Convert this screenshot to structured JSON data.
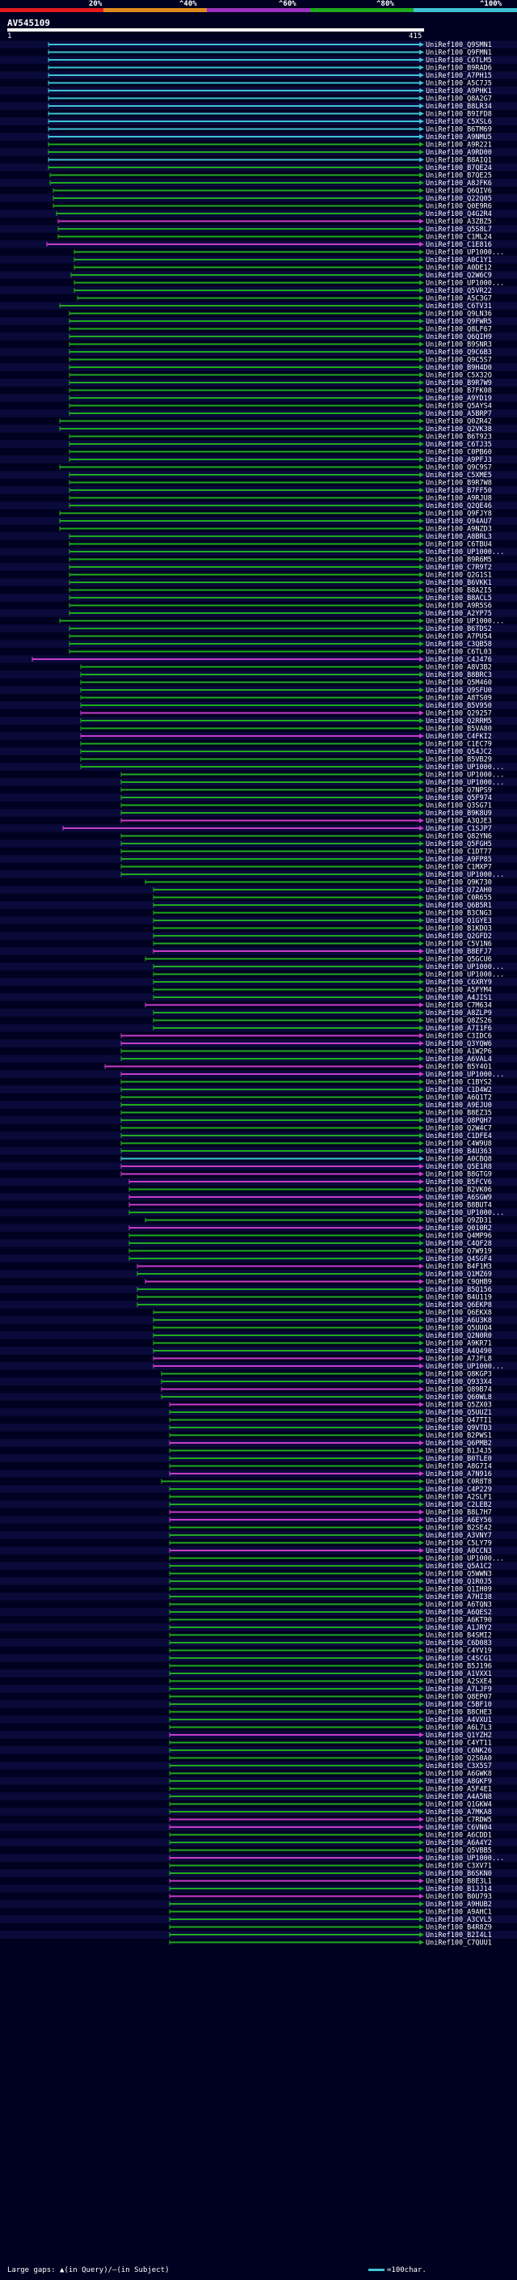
{
  "scale": {
    "percent_labels": [
      "20%",
      "^40%",
      "^60%",
      "^80%",
      "^100%"
    ],
    "colors": [
      "#e31a1c",
      "#e08a1e",
      "#9b30c0",
      "#1faa1f",
      "#3ec3d4"
    ]
  },
  "query": {
    "id": "AV545109",
    "start": "1",
    "end": "415"
  },
  "legend": {
    "gaps_text": "Large gaps: ▲(in Query)/—(in Subject)",
    "scale_text": "=100char."
  },
  "hit_colors": {
    "cyan": "#3ec3d4",
    "green": "#1faa1f",
    "magenta": "#c83cc8",
    "row_band": "#0a0a3a"
  },
  "hits": [
    {
      "label": "UniRef100_Q9SMN1",
      "color": "cyan"
    },
    {
      "label": "UniRef100_Q9FMN1",
      "color": "cyan"
    },
    {
      "label": "UniRef100_C6TLM5",
      "color": "cyan"
    },
    {
      "label": "UniRef100_B9RAD6",
      "color": "cyan"
    },
    {
      "label": "UniRef100_A7PH15",
      "color": "cyan"
    },
    {
      "label": "UniRef100_A5C7J5",
      "color": "cyan"
    },
    {
      "label": "UniRef100_A9PHK1",
      "color": "cyan"
    },
    {
      "label": "UniRef100_Q8A2G7",
      "color": "cyan"
    },
    {
      "label": "UniRef100_B8LR34",
      "color": "cyan"
    },
    {
      "label": "UniRef100_B9IFD8",
      "color": "cyan"
    },
    {
      "label": "UniRef100_C5XSL6",
      "color": "cyan"
    },
    {
      "label": "UniRef100_B6TM69",
      "color": "cyan"
    },
    {
      "label": "UniRef100_A9NMU5",
      "color": "cyan"
    },
    {
      "label": "UniRef100_A9R221",
      "color": "green"
    },
    {
      "label": "UniRef100_A9RD00",
      "color": "green"
    },
    {
      "label": "UniRef100_B8AIQ1",
      "color": "cyan"
    },
    {
      "label": "UniRef100_B7QE24",
      "color": "green"
    },
    {
      "label": "UniRef100_B7QE25",
      "color": "green"
    },
    {
      "label": "UniRef100_A8JFK6",
      "color": "green"
    },
    {
      "label": "UniRef100_Q6QIV6",
      "color": "green"
    },
    {
      "label": "UniRef100_Q22Q05",
      "color": "green"
    },
    {
      "label": "UniRef100_Q0E9R6",
      "color": "green"
    },
    {
      "label": "UniRef100_Q4G2R4",
      "color": "green"
    },
    {
      "label": "UniRef100_A3ZBZ5",
      "color": "magenta"
    },
    {
      "label": "UniRef100_Q5S8L7",
      "color": "green"
    },
    {
      "label": "UniRef100_C1ML24",
      "color": "green"
    },
    {
      "label": "UniRef100_C1E816",
      "color": "magenta"
    },
    {
      "label": "UniRef100_UP1000...",
      "color": "green"
    },
    {
      "label": "UniRef100_A0C1Y1",
      "color": "green"
    },
    {
      "label": "UniRef100_A0DE12",
      "color": "green"
    },
    {
      "label": "UniRef100_Q2W6C9",
      "color": "green"
    },
    {
      "label": "UniRef100_UP1000...",
      "color": "green"
    },
    {
      "label": "UniRef100_Q5VR22",
      "color": "green"
    },
    {
      "label": "UniRef100_A5C3G7",
      "color": "green"
    },
    {
      "label": "UniRef100_C6TV31",
      "color": "green"
    },
    {
      "label": "UniRef100_Q9LN36",
      "color": "green"
    },
    {
      "label": "UniRef100_Q9FWR5",
      "color": "green"
    },
    {
      "label": "UniRef100_Q8LF67",
      "color": "green"
    },
    {
      "label": "UniRef100_Q6QIH9",
      "color": "green"
    },
    {
      "label": "UniRef100_B9SNR3",
      "color": "green"
    },
    {
      "label": "UniRef100_Q9C6B3",
      "color": "green"
    },
    {
      "label": "UniRef100_Q9C5S7",
      "color": "green"
    },
    {
      "label": "UniRef100_B9H4D0",
      "color": "green"
    },
    {
      "label": "UniRef100_C5X32O",
      "color": "green"
    },
    {
      "label": "UniRef100_B9R7W9",
      "color": "green"
    },
    {
      "label": "UniRef100_B7FK08",
      "color": "green"
    },
    {
      "label": "UniRef100_A9YD19",
      "color": "green"
    },
    {
      "label": "UniRef100_Q5AYS4",
      "color": "green"
    },
    {
      "label": "UniRef100_A5BRP7",
      "color": "green"
    },
    {
      "label": "UniRef100_Q0ZR42",
      "color": "green"
    },
    {
      "label": "UniRef100_Q2VK38",
      "color": "green"
    },
    {
      "label": "UniRef100_B6T923",
      "color": "green"
    },
    {
      "label": "UniRef100_C6TJ35",
      "color": "green"
    },
    {
      "label": "UniRef100_C0PB60",
      "color": "green"
    },
    {
      "label": "UniRef100_A9PFJ3",
      "color": "green"
    },
    {
      "label": "UniRef100_Q9C9S7",
      "color": "green"
    },
    {
      "label": "UniRef100_C5XME5",
      "color": "green"
    },
    {
      "label": "UniRef100_B9R7W8",
      "color": "green"
    },
    {
      "label": "UniRef100_B7FF50",
      "color": "green"
    },
    {
      "label": "UniRef100_A9RJU8",
      "color": "green"
    },
    {
      "label": "UniRef100_Q2QE46",
      "color": "green"
    },
    {
      "label": "UniRef100_Q9FJY8",
      "color": "green"
    },
    {
      "label": "UniRef100_Q94AU7",
      "color": "green"
    },
    {
      "label": "UniRef100_A9NZD3",
      "color": "green"
    },
    {
      "label": "UniRef100_A8BRL3",
      "color": "green"
    },
    {
      "label": "UniRef100_C6TBU4",
      "color": "green"
    },
    {
      "label": "UniRef100_UP1000...",
      "color": "green"
    },
    {
      "label": "UniRef100_B9R6M5",
      "color": "green"
    },
    {
      "label": "UniRef100_C7R9T2",
      "color": "green"
    },
    {
      "label": "UniRef100_Q2G1S1",
      "color": "green"
    },
    {
      "label": "UniRef100_B6VKK1",
      "color": "green"
    },
    {
      "label": "UniRef100_B8A2I5",
      "color": "green"
    },
    {
      "label": "UniRef100_B8ACL5",
      "color": "green"
    },
    {
      "label": "UniRef100_A9R5S6",
      "color": "green"
    },
    {
      "label": "UniRef100_A2YP75",
      "color": "green"
    },
    {
      "label": "UniRef100_UP1000...",
      "color": "green"
    },
    {
      "label": "UniRef100_B6TDS2",
      "color": "green"
    },
    {
      "label": "UniRef100_A7PU54",
      "color": "green"
    },
    {
      "label": "UniRef100_C3QB58",
      "color": "green"
    },
    {
      "label": "UniRef100_C6TL03",
      "color": "green"
    },
    {
      "label": "UniRef100_C4J476",
      "color": "magenta"
    },
    {
      "label": "UniRef100_A8V3B2",
      "color": "green"
    },
    {
      "label": "UniRef100_B8BRC3",
      "color": "green"
    },
    {
      "label": "UniRef100_Q5M460",
      "color": "green"
    },
    {
      "label": "UniRef100_Q9SFU0",
      "color": "green"
    },
    {
      "label": "UniRef100_A8TS09",
      "color": "green"
    },
    {
      "label": "UniRef100_B5V950",
      "color": "green"
    },
    {
      "label": "UniRef100_Q29257",
      "color": "magenta"
    },
    {
      "label": "UniRef100_Q2RRM5",
      "color": "green"
    },
    {
      "label": "UniRef100_B5VA80",
      "color": "green"
    },
    {
      "label": "UniRef100_C4FKI2",
      "color": "magenta"
    },
    {
      "label": "UniRef100_C1EC79",
      "color": "green"
    },
    {
      "label": "UniRef100_Q54JC2",
      "color": "green"
    },
    {
      "label": "UniRef100_B5VB29",
      "color": "green"
    },
    {
      "label": "UniRef100_UP1000...",
      "color": "green"
    },
    {
      "label": "UniRef100_UP1000...",
      "color": "green"
    },
    {
      "label": "UniRef100_UP1000...",
      "color": "green"
    },
    {
      "label": "UniRef100_Q7NPS9",
      "color": "green"
    },
    {
      "label": "UniRef100_Q5F974",
      "color": "green"
    },
    {
      "label": "UniRef100_Q3SG71",
      "color": "green"
    },
    {
      "label": "UniRef100_B9K8U9",
      "color": "green"
    },
    {
      "label": "UniRef100_A3QJE3",
      "color": "magenta"
    },
    {
      "label": "UniRef100_C1SJP7",
      "color": "magenta"
    },
    {
      "label": "UniRef100_Q82YN6",
      "color": "green"
    },
    {
      "label": "UniRef100_Q5FGH5",
      "color": "green"
    },
    {
      "label": "UniRef100_C1DT77",
      "color": "green"
    },
    {
      "label": "UniRef100_A9FP85",
      "color": "green"
    },
    {
      "label": "UniRef100_C1MXP7",
      "color": "green"
    },
    {
      "label": "UniRef100_UP1000...",
      "color": "green"
    },
    {
      "label": "UniRef100_Q9K730",
      "color": "green"
    },
    {
      "label": "UniRef100_Q72AH0",
      "color": "green"
    },
    {
      "label": "UniRef100_C0R655",
      "color": "green"
    },
    {
      "label": "UniRef100_Q6B5R1",
      "color": "green"
    },
    {
      "label": "UniRef100_B3CNG3",
      "color": "green"
    },
    {
      "label": "UniRef100_Q1GYE3",
      "color": "green"
    },
    {
      "label": "UniRef100_B1KDO3",
      "color": "green"
    },
    {
      "label": "UniRef100_Q2GFD2",
      "color": "green"
    },
    {
      "label": "UniRef100_C5V1N6",
      "color": "green"
    },
    {
      "label": "UniRef100_B8EFJ7",
      "color": "magenta"
    },
    {
      "label": "UniRef100_Q5GCU6",
      "color": "green"
    },
    {
      "label": "UniRef100_UP1000...",
      "color": "green"
    },
    {
      "label": "UniRef100_UP1000...",
      "color": "green"
    },
    {
      "label": "UniRef100_C6XRY9",
      "color": "green"
    },
    {
      "label": "UniRef100_A5FYM4",
      "color": "green"
    },
    {
      "label": "UniRef100_A4JIS1",
      "color": "green"
    },
    {
      "label": "UniRef100_C7M634",
      "color": "magenta"
    },
    {
      "label": "UniRef100_A8ZLP9",
      "color": "green"
    },
    {
      "label": "UniRef100_Q8ZS26",
      "color": "green"
    },
    {
      "label": "UniRef100_A7I1F6",
      "color": "green"
    },
    {
      "label": "UniRef100_C3IDC6",
      "color": "magenta"
    },
    {
      "label": "UniRef100_Q3YQW6",
      "color": "magenta"
    },
    {
      "label": "UniRef100_A1W2P6",
      "color": "green"
    },
    {
      "label": "UniRef100_A6VAL4",
      "color": "green"
    },
    {
      "label": "UniRef100_B5Y4O1",
      "color": "magenta"
    },
    {
      "label": "UniRef100_UP1000...",
      "color": "magenta"
    },
    {
      "label": "UniRef100_C1BYS2",
      "color": "green"
    },
    {
      "label": "UniRef100_C1D4W2",
      "color": "green"
    },
    {
      "label": "UniRef100_A6Q1T2",
      "color": "green"
    },
    {
      "label": "UniRef100_A9EJU0",
      "color": "green"
    },
    {
      "label": "UniRef100_B8EZ35",
      "color": "green"
    },
    {
      "label": "UniRef100_Q8PQH7",
      "color": "green"
    },
    {
      "label": "UniRef100_Q2W4C7",
      "color": "green"
    },
    {
      "label": "UniRef100_C1DFE4",
      "color": "green"
    },
    {
      "label": "UniRef100_C4W9U8",
      "color": "green"
    },
    {
      "label": "UniRef100_B4U363",
      "color": "green"
    },
    {
      "label": "UniRef100_A0CBQ8",
      "color": "cyan"
    },
    {
      "label": "UniRef100_Q5E1R8",
      "color": "magenta"
    },
    {
      "label": "UniRef100_B8GTG9",
      "color": "magenta"
    },
    {
      "label": "UniRef100_B5FCV6",
      "color": "magenta"
    },
    {
      "label": "UniRef100_B2VK06",
      "color": "green"
    },
    {
      "label": "UniRef100_A6SGW9",
      "color": "magenta"
    },
    {
      "label": "UniRef100_B8BUT4",
      "color": "magenta"
    },
    {
      "label": "UniRef100_UP1000...",
      "color": "green"
    },
    {
      "label": "UniRef100_Q9ZD31",
      "color": "green"
    },
    {
      "label": "UniRef100_Q010R2",
      "color": "magenta"
    },
    {
      "label": "UniRef100_Q4MP96",
      "color": "green"
    },
    {
      "label": "UniRef100_C4QF28",
      "color": "green"
    },
    {
      "label": "UniRef100_Q7W919",
      "color": "green"
    },
    {
      "label": "UniRef100_Q4SGF4",
      "color": "green"
    },
    {
      "label": "UniRef100_B4F1M3",
      "color": "magenta"
    },
    {
      "label": "UniRef100_Q1MZ69",
      "color": "green"
    },
    {
      "label": "UniRef100_C9QHB9",
      "color": "magenta"
    },
    {
      "label": "UniRef100_B5Q156",
      "color": "green"
    },
    {
      "label": "UniRef100_B4U119",
      "color": "green"
    },
    {
      "label": "UniRef100_Q6EKP8",
      "color": "green"
    },
    {
      "label": "UniRef100_Q6EKX8",
      "color": "green"
    },
    {
      "label": "UniRef100_A6U3K8",
      "color": "green"
    },
    {
      "label": "UniRef100_Q5UUQ4",
      "color": "green"
    },
    {
      "label": "UniRef100_Q2N0R0",
      "color": "green"
    },
    {
      "label": "UniRef100_A9KR71",
      "color": "green"
    },
    {
      "label": "UniRef100_A4Q490",
      "color": "green"
    },
    {
      "label": "UniRef100_A7JFL8",
      "color": "magenta"
    },
    {
      "label": "UniRef100_UP1000...",
      "color": "magenta"
    },
    {
      "label": "UniRef100_Q8KGP3",
      "color": "green"
    },
    {
      "label": "UniRef100_Q933X4",
      "color": "green"
    },
    {
      "label": "UniRef100_Q89B74",
      "color": "magenta"
    },
    {
      "label": "UniRef100_Q60WL8",
      "color": "green"
    },
    {
      "label": "UniRef100_Q5ZX03",
      "color": "magenta"
    },
    {
      "label": "UniRef100_Q5UUZ1",
      "color": "green"
    },
    {
      "label": "UniRef100_Q47TI1",
      "color": "green"
    },
    {
      "label": "UniRef100_Q9VTD3",
      "color": "green"
    },
    {
      "label": "UniRef100_B2PWS1",
      "color": "green"
    },
    {
      "label": "UniRef100_Q6PMB2",
      "color": "magenta"
    },
    {
      "label": "UniRef100_B1J4J5",
      "color": "green"
    },
    {
      "label": "UniRef100_B0TLE0",
      "color": "green"
    },
    {
      "label": "UniRef100_A8G7I4",
      "color": "green"
    },
    {
      "label": "UniRef100_A7N916",
      "color": "magenta"
    },
    {
      "label": "UniRef100_C0R8T8",
      "color": "green"
    },
    {
      "label": "UniRef100_C4P229",
      "color": "green"
    },
    {
      "label": "UniRef100_A2SLF1",
      "color": "green"
    },
    {
      "label": "UniRef100_C2LEB2",
      "color": "green"
    },
    {
      "label": "UniRef100_B8L7H7",
      "color": "magenta"
    },
    {
      "label": "UniRef100_A6EY56",
      "color": "magenta"
    },
    {
      "label": "UniRef100_B2SE42",
      "color": "green"
    },
    {
      "label": "UniRef100_A3VNY7",
      "color": "green"
    },
    {
      "label": "UniRef100_C5LY79",
      "color": "green"
    },
    {
      "label": "UniRef100_A0CCN3",
      "color": "magenta"
    },
    {
      "label": "UniRef100_UP1000...",
      "color": "green"
    },
    {
      "label": "UniRef100_Q5A1C2",
      "color": "green"
    },
    {
      "label": "UniRef100_Q5WWN3",
      "color": "green"
    },
    {
      "label": "UniRef100_Q1R0J5",
      "color": "green"
    },
    {
      "label": "UniRef100_Q1IH09",
      "color": "green"
    },
    {
      "label": "UniRef100_A7HI38",
      "color": "green"
    },
    {
      "label": "UniRef100_A6TQN3",
      "color": "green"
    },
    {
      "label": "UniRef100_A6QES2",
      "color": "green"
    },
    {
      "label": "UniRef100_A6KT90",
      "color": "green"
    },
    {
      "label": "UniRef100_A1JRY2",
      "color": "green"
    },
    {
      "label": "UniRef100_B4SMI2",
      "color": "green"
    },
    {
      "label": "UniRef100_C6D083",
      "color": "green"
    },
    {
      "label": "UniRef100_C4YV19",
      "color": "green"
    },
    {
      "label": "UniRef100_C4SCG1",
      "color": "green"
    },
    {
      "label": "UniRef100_B5J196",
      "color": "green"
    },
    {
      "label": "UniRef100_A1VXX1",
      "color": "green"
    },
    {
      "label": "UniRef100_A2SXE4",
      "color": "green"
    },
    {
      "label": "UniRef100_A7LJF9",
      "color": "green"
    },
    {
      "label": "UniRef100_Q8EP07",
      "color": "green"
    },
    {
      "label": "UniRef100_C5BF10",
      "color": "green"
    },
    {
      "label": "UniRef100_B8CHE3",
      "color": "green"
    },
    {
      "label": "UniRef100_A4VXU1",
      "color": "green"
    },
    {
      "label": "UniRef100_A6L7L3",
      "color": "green"
    },
    {
      "label": "UniRef100_Q1YZH2",
      "color": "magenta"
    },
    {
      "label": "UniRef100_C4YT11",
      "color": "green"
    },
    {
      "label": "UniRef100_C6NK26",
      "color": "green"
    },
    {
      "label": "UniRef100_Q2S0A0",
      "color": "green"
    },
    {
      "label": "UniRef100_C3X5S7",
      "color": "green"
    },
    {
      "label": "UniRef100_A6GWK8",
      "color": "green"
    },
    {
      "label": "UniRef100_A8GKF9",
      "color": "green"
    },
    {
      "label": "UniRef100_A5F4E1",
      "color": "green"
    },
    {
      "label": "UniRef100_A4A5N8",
      "color": "green"
    },
    {
      "label": "UniRef100_Q1GKW4",
      "color": "green"
    },
    {
      "label": "UniRef100_A7MKA8",
      "color": "green"
    },
    {
      "label": "UniRef100_C7RDW5",
      "color": "magenta"
    },
    {
      "label": "UniRef100_C6VN04",
      "color": "magenta"
    },
    {
      "label": "UniRef100_A6CDD1",
      "color": "green"
    },
    {
      "label": "UniRef100_A6A4Y2",
      "color": "green"
    },
    {
      "label": "UniRef100_Q5VBB5",
      "color": "green"
    },
    {
      "label": "UniRef100_UP1000...",
      "color": "magenta"
    },
    {
      "label": "UniRef100_C3XV71",
      "color": "green"
    },
    {
      "label": "UniRef100_B6SKN0",
      "color": "green"
    },
    {
      "label": "UniRef100_B8E3L1",
      "color": "magenta"
    },
    {
      "label": "UniRef100_B1JJ14",
      "color": "green"
    },
    {
      "label": "UniRef100_B0U793",
      "color": "magenta"
    },
    {
      "label": "UniRef100_A9HUB2",
      "color": "green"
    },
    {
      "label": "UniRef100_A9AHC1",
      "color": "green"
    },
    {
      "label": "UniRef100_A3CVL5",
      "color": "green"
    },
    {
      "label": "UniRef100_B4R8Z9",
      "color": "green"
    },
    {
      "label": "UniRef100_B2I4L1",
      "color": "green"
    },
    {
      "label": "UniRef100_C7QUU1",
      "color": "green"
    }
  ]
}
